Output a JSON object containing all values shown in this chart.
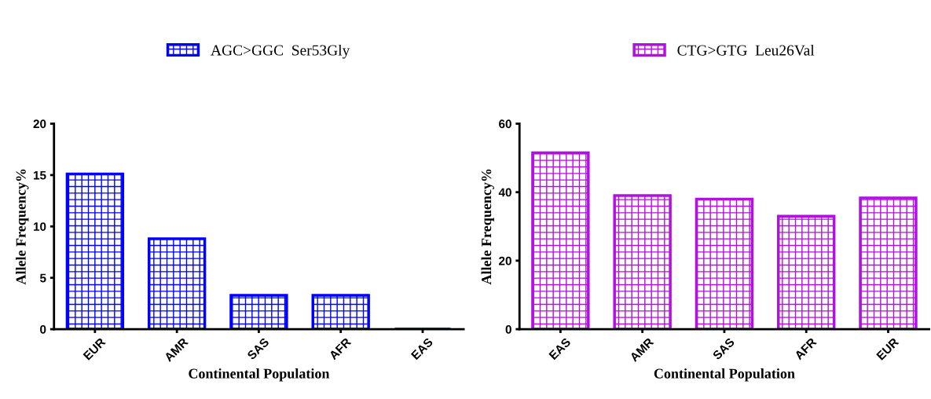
{
  "chart_data": [
    {
      "type": "bar",
      "categories": [
        "EUR",
        "AMR",
        "SAS",
        "AFR",
        "EAS"
      ],
      "xlabel": "Continental Population",
      "ylabel": "Allele Frequency%",
      "ylim": [
        0,
        20
      ],
      "yticks": [
        0,
        5,
        10,
        15,
        20
      ],
      "grid": false,
      "legend": "top",
      "series": [
        {
          "name": "AGC>GGC  Ser53Gly",
          "color": "#0000ff",
          "values": [
            15.1,
            8.8,
            3.3,
            3.3,
            0
          ]
        }
      ]
    },
    {
      "type": "bar",
      "categories": [
        "EAS",
        "AMR",
        "SAS",
        "AFR",
        "EUR"
      ],
      "xlabel": "Continental Population",
      "ylabel": "Allele Frequency%",
      "ylim": [
        0,
        60
      ],
      "yticks": [
        0,
        20,
        40,
        60
      ],
      "grid": false,
      "legend": "top",
      "series": [
        {
          "name": "CTG>GTG  Leu26Val",
          "color": "#b010e0",
          "values": [
            51.5,
            39,
            38,
            33,
            38.3
          ]
        }
      ]
    }
  ]
}
